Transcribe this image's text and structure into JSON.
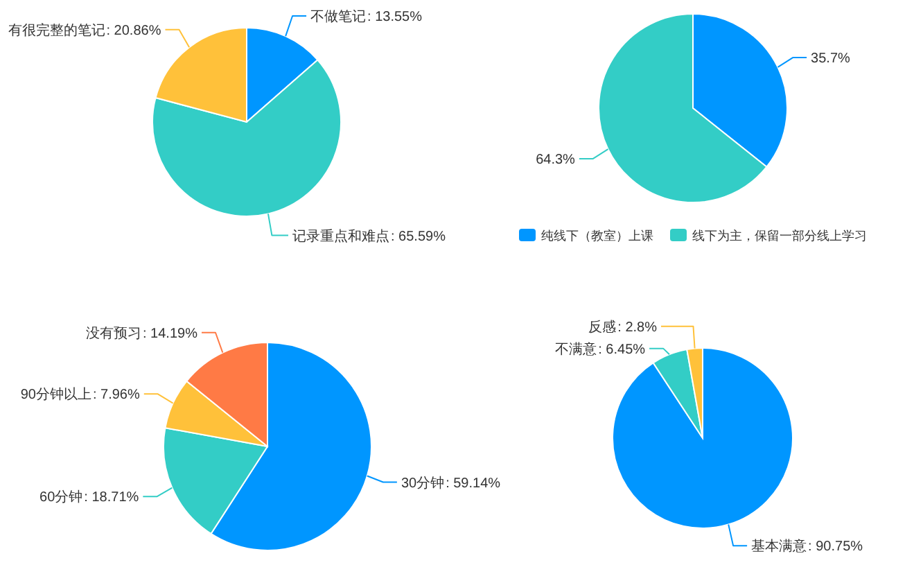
{
  "chart_data": [
    {
      "type": "pie",
      "categories": [
        "不做笔记",
        "记录重点和难点",
        "有很完整的笔记"
      ],
      "values": [
        13.55,
        65.59,
        20.86
      ],
      "value_labels": [
        ": 13.55%",
        ": 65.59%",
        ": 20.86%"
      ],
      "colors": [
        "#0096ff",
        "#33cdc6",
        "#ffc13a"
      ],
      "legend": false
    },
    {
      "type": "pie",
      "categories": [
        "纯线下（教室）上课",
        "线下为主，保留一部分线上学习"
      ],
      "values": [
        35.7,
        64.3
      ],
      "value_labels": [
        "35.7%",
        "64.3%"
      ],
      "colors": [
        "#0096ff",
        "#33cdc6"
      ],
      "legend": "bottom"
    },
    {
      "type": "pie",
      "categories": [
        "30分钟",
        "60分钟",
        "90分钟以上",
        "没有预习"
      ],
      "values": [
        59.14,
        18.71,
        7.96,
        14.19
      ],
      "value_labels": [
        ": 59.14%",
        " : 18.71%",
        ": 7.96%",
        ": 14.19%"
      ],
      "colors": [
        "#0096ff",
        "#33cdc6",
        "#ffc13a",
        "#ff7a45"
      ],
      "legend": false
    },
    {
      "type": "pie",
      "categories": [
        "基本满意",
        "不满意",
        "反感"
      ],
      "values": [
        90.75,
        6.45,
        2.8
      ],
      "value_labels": [
        ": 90.75%",
        ": 6.45%",
        ": 2.8%"
      ],
      "colors": [
        "#0096ff",
        "#33cdc6",
        "#ffc13a"
      ],
      "legend": false
    }
  ]
}
